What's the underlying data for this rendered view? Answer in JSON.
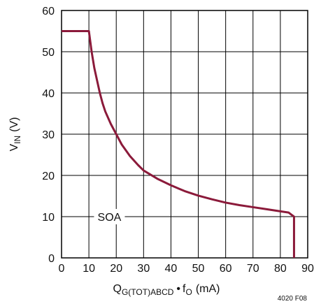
{
  "chart_data": {
    "type": "line",
    "title": "",
    "xlabel": {
      "main": "Q",
      "sub": "G(TOT)ABCD",
      "bullet": "•",
      "f": "f",
      "fsub": "O",
      "unit": "(mA)"
    },
    "ylabel": {
      "main": "V",
      "sub": "IN",
      "unit": "(V)"
    },
    "xlim": [
      0,
      90
    ],
    "ylim": [
      0,
      60
    ],
    "xticks": [
      "0",
      "10",
      "20",
      "30",
      "40",
      "50",
      "60",
      "70",
      "80",
      "90"
    ],
    "yticks": [
      "0",
      "10",
      "20",
      "30",
      "40",
      "50",
      "60"
    ],
    "grid": true,
    "annotation": "SOA",
    "figure_id": "4020 F08",
    "series_color": "#8b1a3a",
    "series": [
      {
        "x": [
          0,
          10,
          11,
          12,
          13,
          14,
          15,
          16,
          18,
          20,
          22,
          25,
          28,
          30,
          35,
          40,
          45,
          50,
          55,
          60,
          65,
          70,
          75,
          80,
          83,
          84,
          85,
          85
        ],
        "y": [
          55,
          55,
          50,
          46,
          43,
          40,
          37.5,
          35.5,
          32.5,
          30,
          27.5,
          24.7,
          22.5,
          21.2,
          19.2,
          17.6,
          16.2,
          15.1,
          14.2,
          13.4,
          12.8,
          12.3,
          11.8,
          11.3,
          11,
          10.5,
          10,
          0
        ]
      }
    ]
  }
}
